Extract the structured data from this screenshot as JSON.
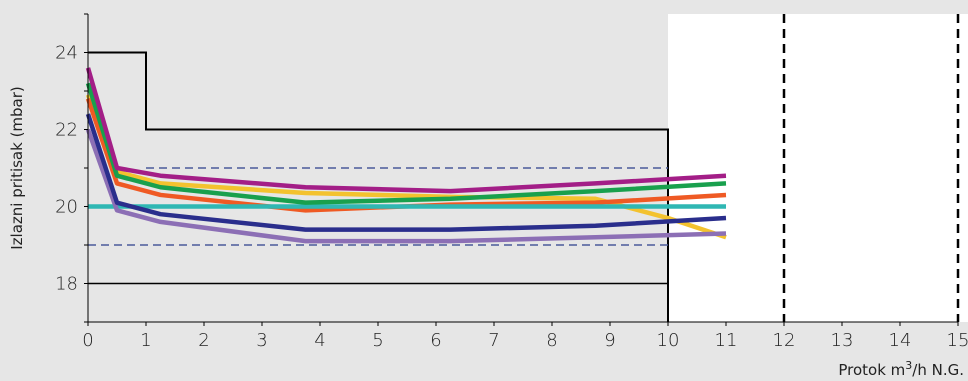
{
  "chart_data": {
    "type": "line",
    "title": "",
    "xlabel": "Protok m³/h N.G.",
    "xlabel_parts": {
      "before": "Protok m",
      "sup": "3",
      "after": "/h N.G."
    },
    "ylabel": "Izlazni pritisak (mbar)",
    "xlim": [
      0,
      15
    ],
    "ylim": [
      17,
      25
    ],
    "xticks": [
      0,
      1,
      2,
      3,
      4,
      5,
      6,
      7,
      8,
      9,
      10,
      11,
      12,
      13,
      14,
      15
    ],
    "yticks": [
      18,
      20,
      22,
      24
    ],
    "grid": false,
    "series": [
      {
        "color": "#f3c22f",
        "x": [
          0,
          0.5,
          1.25,
          3.75,
          6.25,
          8.75,
          10,
          11
        ],
        "y": [
          22.9,
          20.9,
          20.6,
          20.35,
          20.25,
          20.2,
          19.7,
          19.2
        ]
      },
      {
        "color": "#ef5a24",
        "x": [
          0,
          0.5,
          1.25,
          3.75,
          6.25,
          8.75,
          11
        ],
        "y": [
          22.8,
          20.6,
          20.3,
          19.9,
          20.05,
          20.1,
          20.3
        ]
      },
      {
        "color": "#2fb7b3",
        "x": [
          0,
          11
        ],
        "y": [
          20.0,
          20.0
        ]
      },
      {
        "color": "#8c6fb5",
        "x": [
          0,
          0.5,
          1.25,
          3.75,
          6.25,
          8.75,
          11
        ],
        "y": [
          22.0,
          19.9,
          19.6,
          19.1,
          19.1,
          19.2,
          19.3
        ]
      },
      {
        "color": "#2a2e8c",
        "x": [
          0,
          0.5,
          1.25,
          3.75,
          6.25,
          8.75,
          11
        ],
        "y": [
          22.4,
          20.1,
          19.8,
          19.4,
          19.4,
          19.5,
          19.7
        ]
      },
      {
        "color": "#19a04d",
        "x": [
          0,
          0.5,
          1.25,
          3.75,
          6.25,
          8.75,
          11
        ],
        "y": [
          23.2,
          20.8,
          20.5,
          20.1,
          20.2,
          20.4,
          20.6
        ]
      },
      {
        "color": "#a31e87",
        "x": [
          0,
          0.5,
          1.25,
          3.75,
          6.25,
          8.75,
          11
        ],
        "y": [
          23.6,
          21.0,
          20.8,
          20.5,
          20.4,
          20.6,
          20.8
        ]
      }
    ],
    "limit_lines": {
      "upper_envelope": {
        "x": [
          0,
          1,
          1,
          10,
          10
        ],
        "y": [
          24,
          24,
          22,
          22,
          17
        ],
        "color": "#000000"
      },
      "lower_limit": {
        "x": [
          0,
          10
        ],
        "y": [
          18,
          18
        ],
        "color": "#000000"
      },
      "tolerance_upper": {
        "x": [
          1,
          10
        ],
        "y": [
          21,
          21
        ],
        "color": "#4a5a9a"
      },
      "tolerance_lower": {
        "x": [
          0,
          10
        ],
        "y": [
          19,
          19
        ],
        "color": "#4a5a9a"
      },
      "vertical_dashed": [
        {
          "x": 12,
          "color": "#000000"
        },
        {
          "x": 15,
          "color": "#000000"
        }
      ]
    },
    "white_region_xlim": [
      10,
      15
    ]
  }
}
